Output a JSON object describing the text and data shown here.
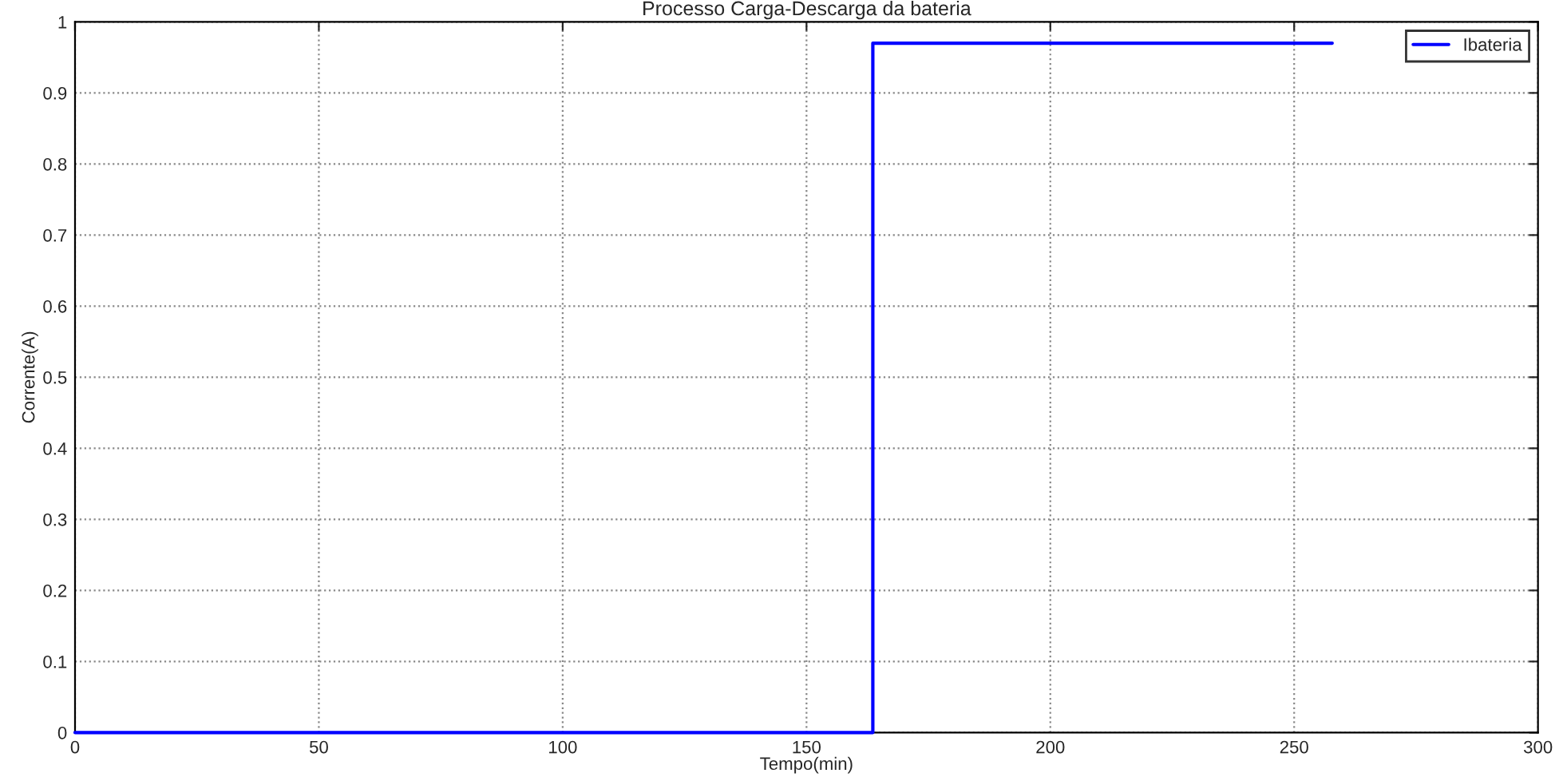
{
  "chart_data": {
    "type": "step",
    "title": "Processo Carga-Descarga da bateria",
    "xlabel": "Tempo(min)",
    "ylabel": "Corrente(A)",
    "series": [
      {
        "name": "Ibateria",
        "color": "#0000ff",
        "x": [
          0,
          163.6,
          257.8
        ],
        "values": [
          0,
          0.97,
          0.97
        ]
      }
    ],
    "xlim": [
      0,
      300
    ],
    "xticks": [
      0,
      50,
      100,
      150,
      200,
      250,
      300
    ],
    "ylim": [
      0,
      1
    ],
    "yticks": [
      0,
      0.1,
      0.2,
      0.3,
      0.4,
      0.5,
      0.6,
      0.7,
      0.8,
      0.9,
      1
    ],
    "grid": true,
    "legend": "top right",
    "line_style": "solid",
    "marker": "none"
  }
}
